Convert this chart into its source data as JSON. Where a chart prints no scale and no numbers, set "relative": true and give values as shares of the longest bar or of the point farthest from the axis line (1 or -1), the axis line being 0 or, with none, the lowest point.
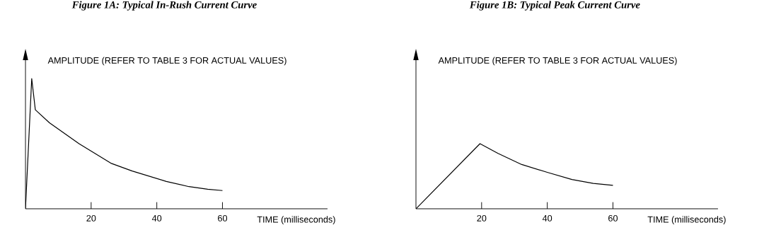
{
  "chart_data": [
    {
      "type": "line",
      "title": "Figure 1A:  Typical In-Rush Current Curve",
      "xlabel": "TIME (milliseconds)",
      "ylabel": "AMPLITUDE (REFER TO TABLE 3 FOR ACTUAL VALUES)",
      "relative": true,
      "color": "#000000",
      "x": [
        0,
        1.9,
        3.0,
        7.3,
        16.3,
        26.0,
        32.5,
        42.9,
        49.8,
        55.5,
        60
      ],
      "values": [
        0,
        1,
        0.76,
        0.66,
        0.5,
        0.35,
        0.29,
        0.21,
        0.17,
        0.15,
        0.14
      ],
      "xlim": [
        0,
        92
      ],
      "xticks": [
        20,
        40,
        60
      ]
    },
    {
      "type": "line",
      "title": "Figure 1B:  Typical Peak Current Curve",
      "xlabel": "TIME (milliseconds)",
      "ylabel": "AMPLITUDE (REFER TO TABLE 3 FOR ACTUAL VALUES)",
      "relative": true,
      "color": "#000000",
      "x": [
        0,
        19.5,
        25,
        32.2,
        40,
        47.5,
        54,
        60
      ],
      "values": [
        0,
        1,
        0.85,
        0.68,
        0.56,
        0.45,
        0.39,
        0.36
      ],
      "xlim": [
        0,
        92
      ],
      "xticks": [
        20,
        40,
        60
      ]
    }
  ]
}
